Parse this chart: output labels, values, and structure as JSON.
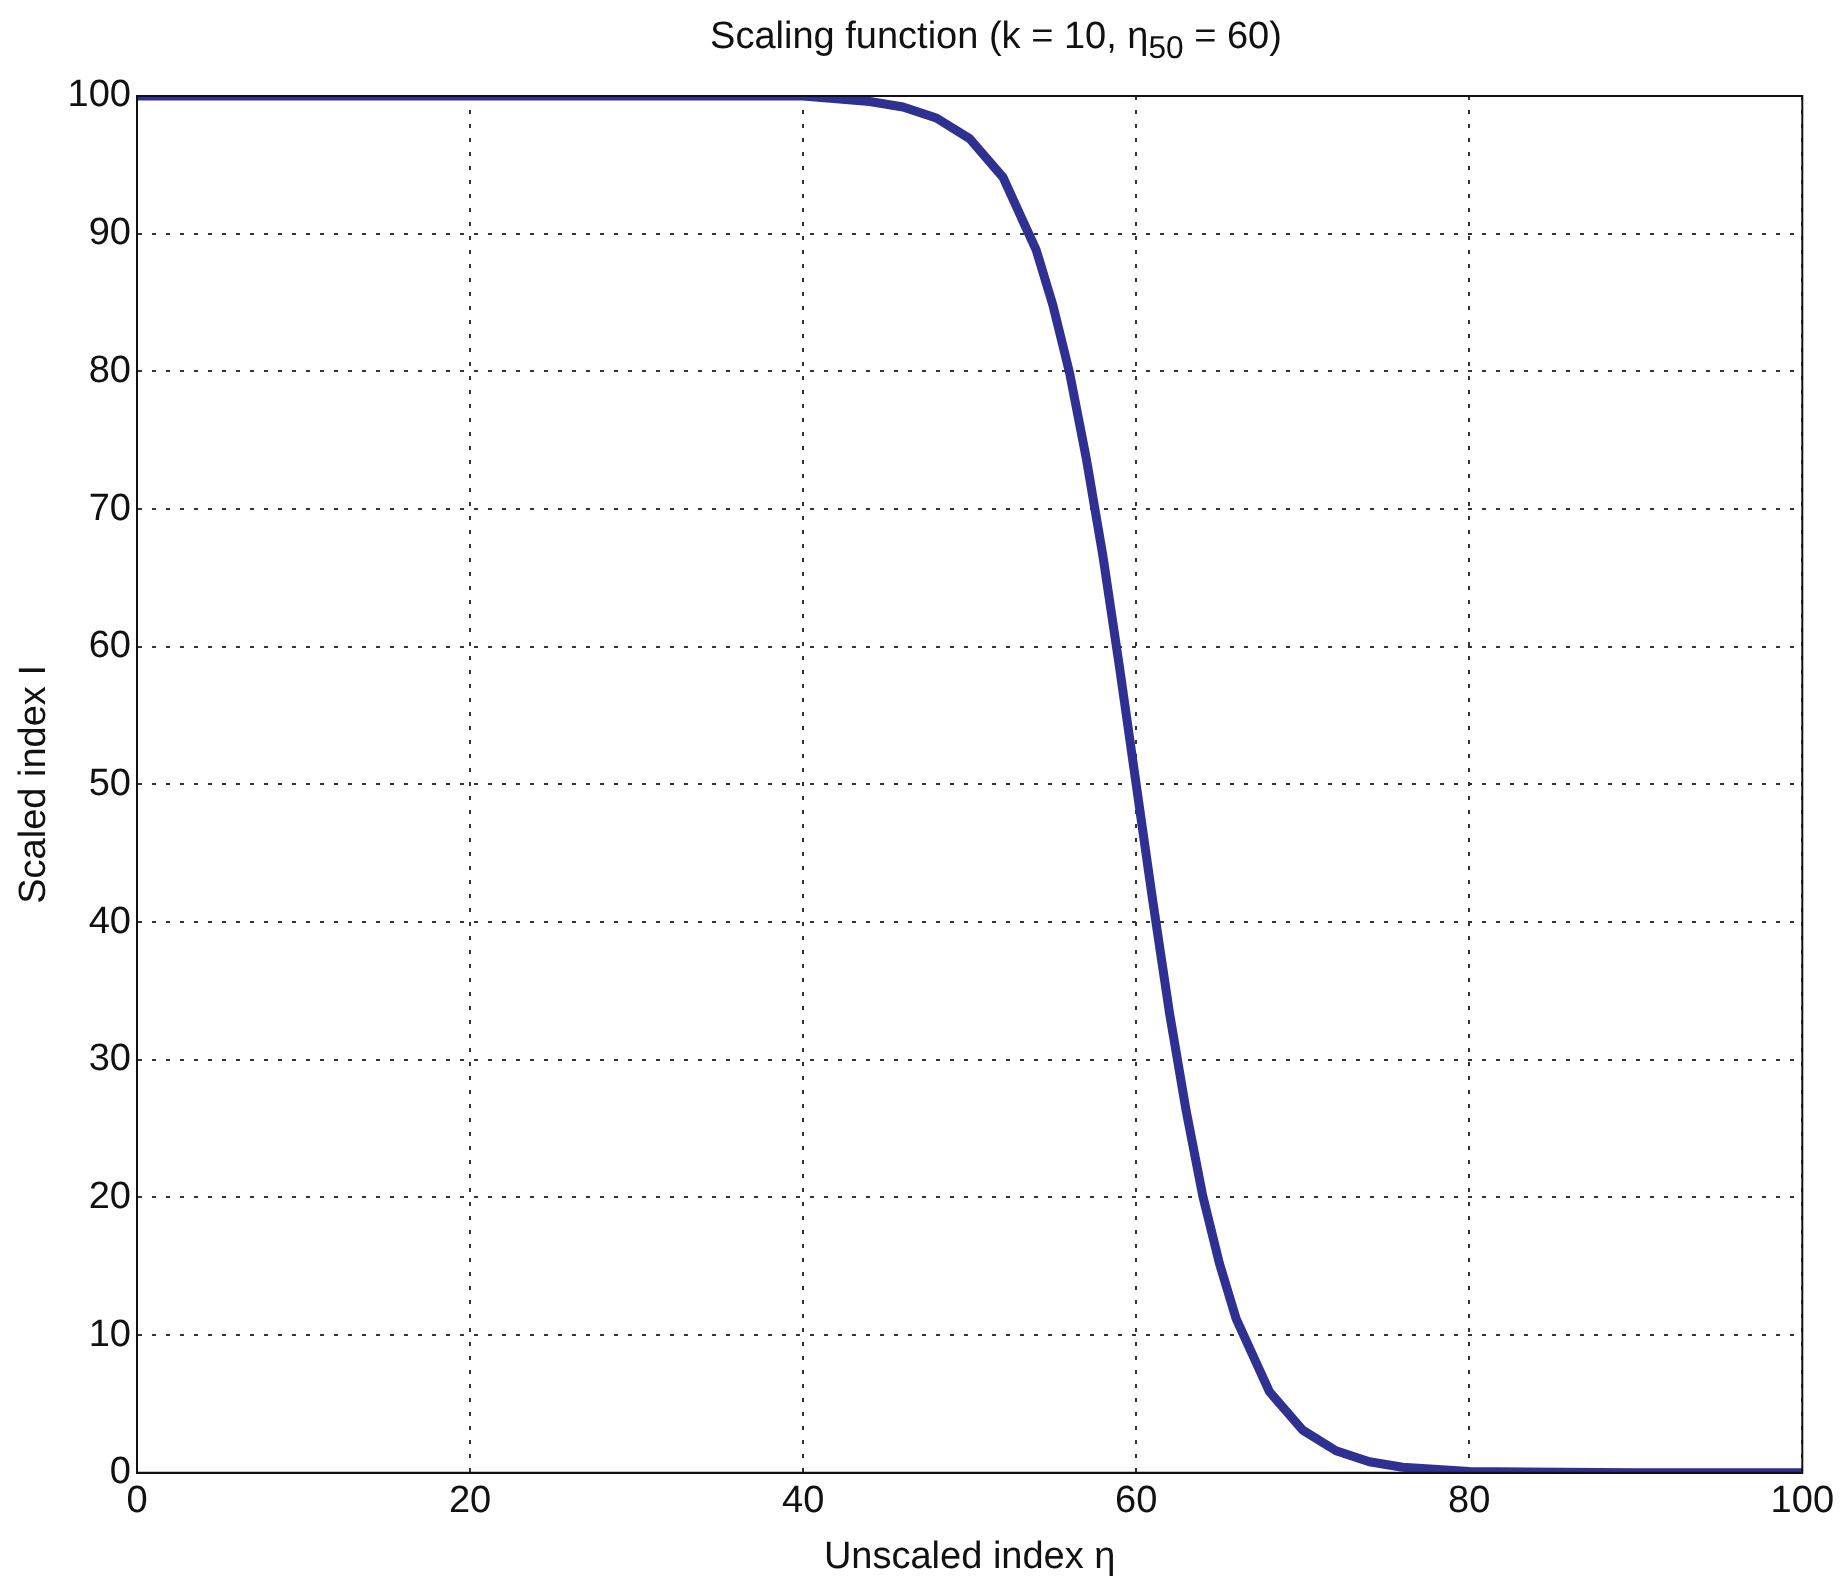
{
  "chart_data": {
    "type": "line",
    "title": "Scaling function (k = 10, η$_{50}$ = 60)",
    "xlabel": "Unscaled index η",
    "ylabel": "Scaled index I",
    "x": [
      0,
      10,
      20,
      30,
      40,
      42,
      44,
      46,
      48,
      50,
      52,
      54,
      55,
      56,
      57,
      58,
      59,
      60,
      61,
      62,
      63,
      64,
      65,
      66,
      68,
      70,
      72,
      74,
      76,
      80,
      90,
      100
    ],
    "series": [
      {
        "color": "#2e3192",
        "values": [
          100,
          100,
          100,
          100,
          100,
          99.8,
          99.6,
          99.2,
          98.4,
          96.9,
          94.1,
          88.8,
          84.8,
          79.9,
          73.7,
          66.6,
          58.5,
          50,
          41.5,
          33.4,
          26.3,
          20.1,
          15.2,
          11.2,
          5.9,
          3.1,
          1.6,
          0.8,
          0.4,
          0.1,
          0,
          0
        ]
      }
    ],
    "xlim": [
      0,
      100
    ],
    "xticks": [
      0,
      20,
      40,
      60,
      80,
      100
    ],
    "ylim": [
      0,
      100
    ],
    "yticks": [
      0,
      10,
      20,
      30,
      40,
      50,
      60,
      70,
      80,
      90,
      100
    ],
    "grid": true,
    "legend": false,
    "marker": "none",
    "line_style": "solid"
  }
}
